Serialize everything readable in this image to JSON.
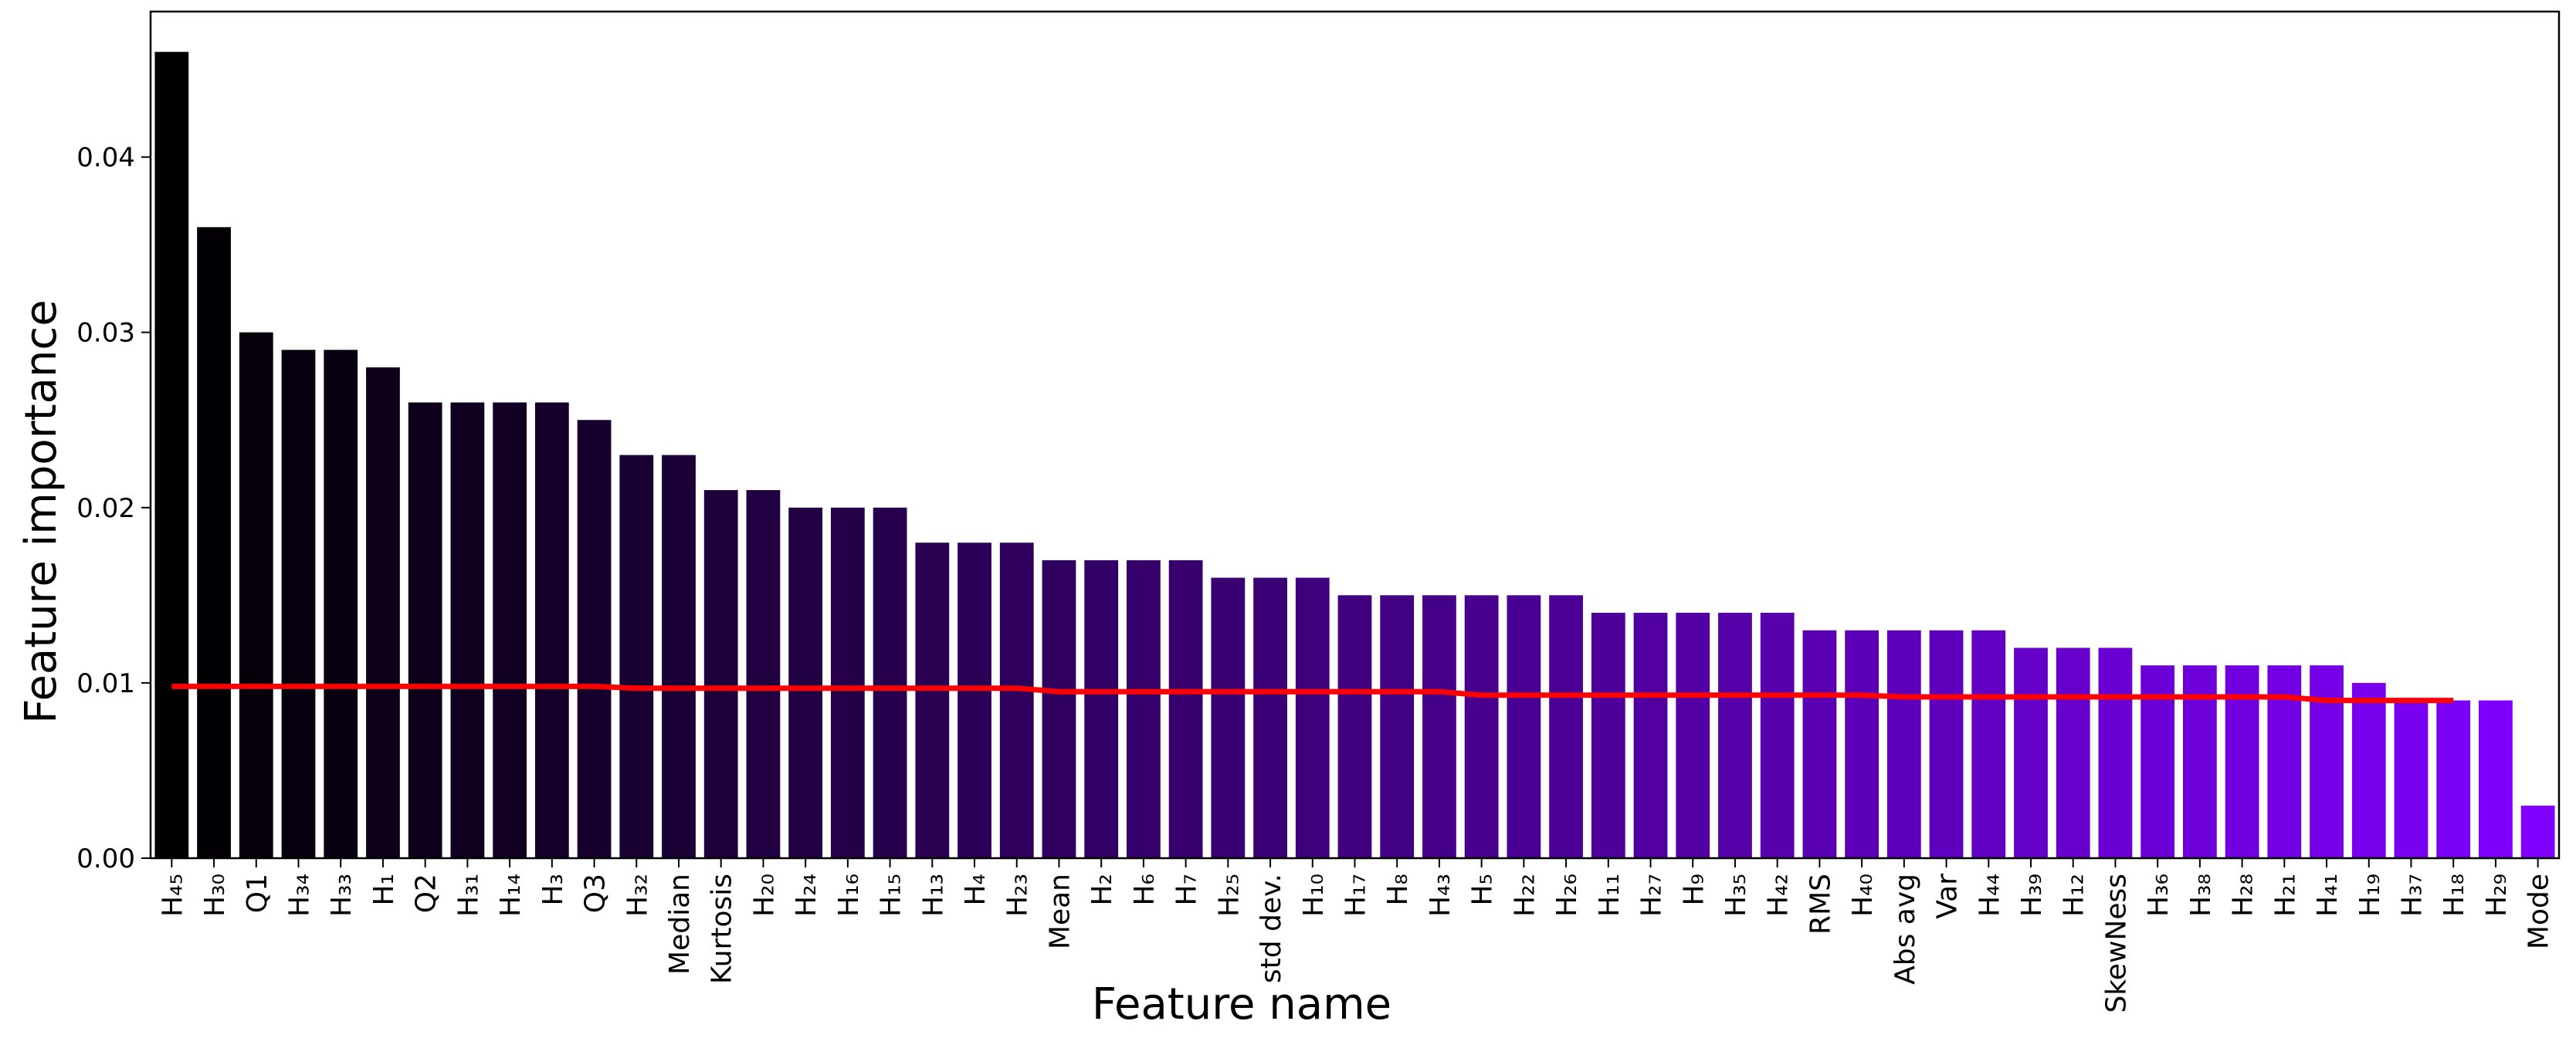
{
  "chart_data": {
    "type": "bar",
    "x_label": "Feature name",
    "y_label": "Feature importance",
    "categories": [
      "H₄₅",
      "H₃₀",
      "Q1",
      "H₃₄",
      "H₃₃",
      "H₁",
      "Q2",
      "H₃₁",
      "H₁₄",
      "H₃",
      "Q3",
      "H₃₂",
      "Median",
      "Kurtosis",
      "H₂₀",
      "H₂₄",
      "H₁₆",
      "H₁₅",
      "H₁₃",
      "H₄",
      "H₂₃",
      "Mean",
      "H₂",
      "H₆",
      "H₇",
      "H₂₅",
      "std dev.",
      "H₁₀",
      "H₁₇",
      "H₈",
      "H₄₃",
      "H₅",
      "H₂₂",
      "H₂₆",
      "H₁₁",
      "H₂₇",
      "H₉",
      "H₃₅",
      "H₄₂",
      "RMS",
      "H₄₀",
      "Abs avg",
      "Var",
      "H₄₄",
      "H₃₉",
      "H₁₂",
      "SkewNess",
      "H₃₆",
      "H₃₈",
      "H₂₈",
      "H₂₁",
      "H₄₁",
      "H₁₉",
      "H₃₇",
      "H₁₈",
      "H₂₉",
      "Mode"
    ],
    "values": [
      0.046,
      0.036,
      0.03,
      0.029,
      0.029,
      0.028,
      0.026,
      0.026,
      0.026,
      0.026,
      0.025,
      0.023,
      0.023,
      0.021,
      0.021,
      0.02,
      0.02,
      0.02,
      0.018,
      0.018,
      0.018,
      0.017,
      0.017,
      0.017,
      0.017,
      0.016,
      0.016,
      0.016,
      0.015,
      0.015,
      0.015,
      0.015,
      0.015,
      0.015,
      0.014,
      0.014,
      0.014,
      0.014,
      0.014,
      0.013,
      0.013,
      0.013,
      0.013,
      0.013,
      0.012,
      0.012,
      0.012,
      0.011,
      0.011,
      0.011,
      0.011,
      0.011,
      0.01,
      0.009,
      0.009,
      0.009,
      0.003
    ],
    "colormap": [
      "#000000",
      "#8000ff"
    ],
    "trend_line": {
      "color": "#ff0000",
      "values": [
        0.0098,
        0.0098,
        0.0098,
        0.0098,
        0.0098,
        0.0098,
        0.0098,
        0.0098,
        0.0098,
        0.0098,
        0.0098,
        0.0097,
        0.0097,
        0.0097,
        0.0097,
        0.0097,
        0.0097,
        0.0097,
        0.0097,
        0.0097,
        0.0097,
        0.0095,
        0.0095,
        0.0095,
        0.0095,
        0.0095,
        0.0095,
        0.0095,
        0.0095,
        0.0095,
        0.0095,
        0.0093,
        0.0093,
        0.0093,
        0.0093,
        0.0093,
        0.0093,
        0.0093,
        0.0093,
        0.0093,
        0.0093,
        0.0092,
        0.0092,
        0.0092,
        0.0092,
        0.0092,
        0.0092,
        0.0092,
        0.0092,
        0.0092,
        0.0092,
        0.009,
        0.009,
        0.009,
        0.009,
        null,
        null
      ]
    },
    "ylim": [
      0,
      0.0483
    ],
    "yticks": [
      {
        "value": 0,
        "label": "0.00"
      },
      {
        "value": 0.01,
        "label": "0.01"
      },
      {
        "value": 0.02,
        "label": "0.02"
      },
      {
        "value": 0.03,
        "label": "0.03"
      },
      {
        "value": 0.04,
        "label": "0.04"
      }
    ]
  }
}
